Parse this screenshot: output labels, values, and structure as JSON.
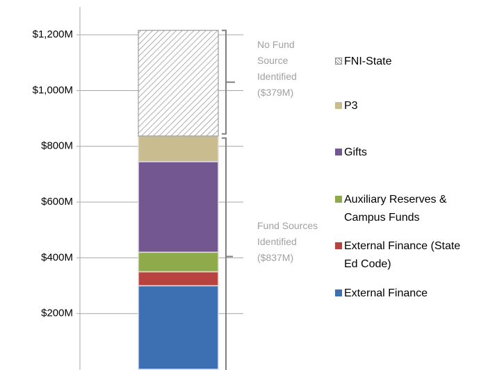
{
  "chart_data": {
    "type": "stacked_bar",
    "categories": [
      null
    ],
    "series": [
      {
        "name": "External Finance",
        "color": "#3d6fb3",
        "values": [
          300
        ]
      },
      {
        "name": "External Finance (State Ed Code)",
        "color": "#b8423f",
        "values": [
          50
        ]
      },
      {
        "name": "Auxiliary Reserves & Campus Funds",
        "color": "#8eaa4a",
        "values": [
          70
        ]
      },
      {
        "name": "Gifts",
        "color": "#725790",
        "values": [
          325
        ]
      },
      {
        "name": "P3",
        "color": "#c9bd90",
        "values": [
          92
        ]
      },
      {
        "name": "FNI-State",
        "color": "#8a8a8a",
        "pattern": "hatch",
        "values": [
          379
        ]
      }
    ],
    "ylim": [
      0,
      1300
    ],
    "yticks": [
      {
        "value": 200,
        "label": "$200M"
      },
      {
        "value": 400,
        "label": "$400M"
      },
      {
        "value": 600,
        "label": "$600M"
      },
      {
        "value": 800,
        "label": "$800M"
      },
      {
        "value": 1000,
        "label": "$1,000M"
      },
      {
        "value": 1200,
        "label": "$1,200M"
      }
    ],
    "grid": true,
    "annotations": [
      "No Fund Source Identified ($379M)",
      "Fund Sources Identified ($837M)"
    ]
  }
}
